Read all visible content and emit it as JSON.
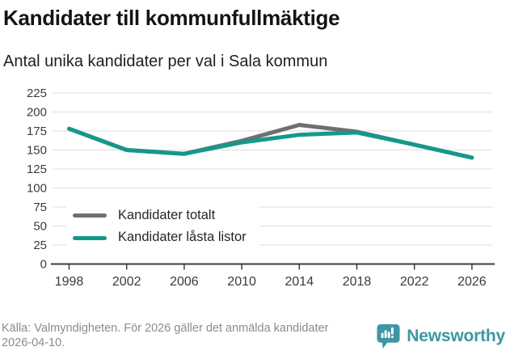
{
  "header": {
    "title": "Kandidater till kommunfullmäktige",
    "subtitle": "Antal unika kandidater per val i Sala kommun"
  },
  "chart_data": {
    "type": "line",
    "title": "Kandidater till kommunfullmäktige",
    "subtitle": "Antal unika kandidater per val i Sala kommun",
    "x": [
      1998,
      2002,
      2006,
      2010,
      2014,
      2018,
      2022,
      2026
    ],
    "series": [
      {
        "name": "Kandidater totalt",
        "color": "#6f6f6f",
        "values": [
          178,
          150,
          145,
          162,
          183,
          174,
          157,
          140
        ]
      },
      {
        "name": "Kandidater låsta listor",
        "color": "#15988c",
        "values": [
          178,
          150,
          145,
          160,
          170,
          173,
          157,
          140
        ]
      }
    ],
    "xlabel": "",
    "ylabel": "",
    "ylim": [
      0,
      225
    ],
    "yticks": [
      0,
      25,
      50,
      75,
      100,
      125,
      150,
      175,
      200,
      225
    ],
    "grid": "horizontal",
    "legend_position": "inside-bottom-left"
  },
  "footer": {
    "source": "Källa: Valmyndigheten. För 2026 gäller det anmälda kandidater 2026-04-10.",
    "brand": "Newsworthy"
  },
  "colors": {
    "accent_teal": "#15988c",
    "series_gray": "#6f6f6f",
    "logo_teal": "#3c97a2",
    "grid": "#e2e2e2",
    "axis": "#3d3d3d"
  }
}
